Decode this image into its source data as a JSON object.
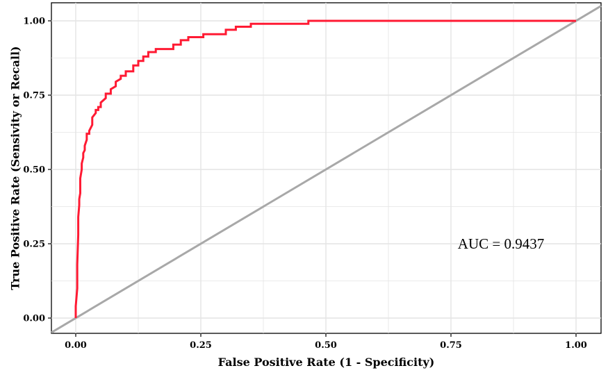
{
  "chart_data": {
    "type": "line",
    "title": "",
    "xlabel": "False Positive Rate (1 - Specificity)",
    "ylabel": "True Positive Rate (Sensivity or Recall)",
    "xlim": [
      0,
      1
    ],
    "ylim": [
      0,
      1
    ],
    "x_ticks": [
      0,
      0.25,
      0.5,
      0.75,
      1
    ],
    "y_ticks": [
      0,
      0.25,
      0.5,
      0.75,
      1
    ],
    "x_tick_labels": [
      "0.00",
      "0.25",
      "0.50",
      "0.75",
      "1.00"
    ],
    "y_tick_labels": [
      "0.00",
      "0.25",
      "0.50",
      "0.75",
      "1.00"
    ],
    "grid": true,
    "annotation": "AUC = 0.9437",
    "annotation_at": [
      0.85,
      0.25
    ],
    "colors": {
      "roc": "#ff1a33",
      "reference": "#a8a8a8",
      "grid": "#e4e4e4"
    },
    "series": [
      {
        "x": [
          0,
          0,
          0.003,
          0.003,
          0.005,
          0.005,
          0.007,
          0.007,
          0.009,
          0.009,
          0.012,
          0.012,
          0.015,
          0.015,
          0.018,
          0.018,
          0.022,
          0.022,
          0.027,
          0.027,
          0.033,
          0.033,
          0.04,
          0.04,
          0.045,
          0.045,
          0.05,
          0.05,
          0.06,
          0.06,
          0.07,
          0.07,
          0.08,
          0.08,
          0.09,
          0.09,
          0.1,
          0.1,
          0.115,
          0.115,
          0.125,
          0.125,
          0.135,
          0.135,
          0.145,
          0.145,
          0.16,
          0.16,
          0.195,
          0.195,
          0.21,
          0.21,
          0.225,
          0.225,
          0.255,
          0.255,
          0.3,
          0.3,
          0.32,
          0.32,
          0.35,
          0.35,
          0.465,
          0.465,
          1.0
        ],
        "y": [
          0,
          0.04,
          0.1,
          0.18,
          0.28,
          0.34,
          0.38,
          0.4,
          0.42,
          0.47,
          0.5,
          0.52,
          0.54,
          0.555,
          0.565,
          0.58,
          0.6,
          0.62,
          0.62,
          0.63,
          0.65,
          0.675,
          0.69,
          0.7,
          0.7,
          0.71,
          0.71,
          0.725,
          0.74,
          0.755,
          0.755,
          0.77,
          0.78,
          0.795,
          0.805,
          0.815,
          0.815,
          0.83,
          0.83,
          0.85,
          0.85,
          0.865,
          0.865,
          0.88,
          0.88,
          0.895,
          0.895,
          0.905,
          0.905,
          0.92,
          0.92,
          0.935,
          0.935,
          0.945,
          0.945,
          0.955,
          0.955,
          0.97,
          0.97,
          0.98,
          0.98,
          0.99,
          0.99,
          1.0,
          1.0
        ]
      }
    ]
  }
}
